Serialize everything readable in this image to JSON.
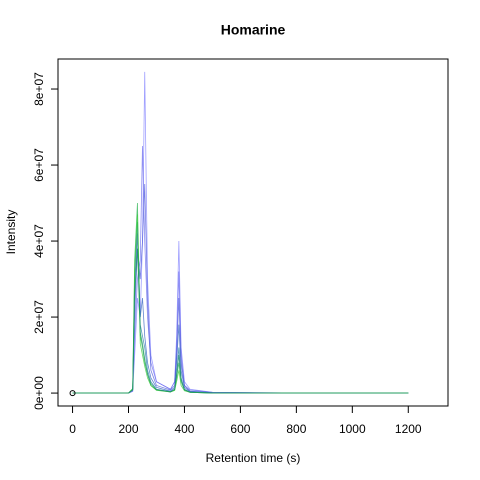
{
  "chart_data": {
    "type": "line",
    "title": "Homarine",
    "xlabel": "Retention time (s)",
    "ylabel": "Intensity",
    "x": [
      0,
      200,
      215,
      222,
      232,
      242,
      250,
      258,
      268,
      280,
      300,
      350,
      365,
      372,
      380,
      388,
      400,
      420,
      500,
      800,
      1200
    ],
    "series": [
      {
        "color": "#8080ff",
        "values": [
          0,
          0,
          500000,
          10000000,
          25000000,
          20000000,
          40000000,
          84500000,
          30000000,
          10000000,
          3000000,
          1000000,
          3000000,
          15000000,
          40000000,
          12000000,
          3000000,
          1000000,
          200000,
          0,
          0
        ]
      },
      {
        "color": "#6a6aee",
        "values": [
          0,
          0,
          500000,
          15000000,
          30000000,
          35000000,
          65000000,
          40000000,
          20000000,
          8000000,
          3000000,
          1000000,
          3000000,
          12000000,
          32000000,
          10000000,
          2000000,
          800000,
          200000,
          0,
          0
        ]
      },
      {
        "color": "#4c5ad8",
        "values": [
          0,
          0,
          800000,
          20000000,
          38000000,
          30000000,
          40000000,
          55000000,
          25000000,
          6000000,
          2000000,
          800000,
          2000000,
          10000000,
          25000000,
          8000000,
          2000000,
          500000,
          100000,
          0,
          0
        ]
      },
      {
        "color": "#2f5fc0",
        "values": [
          0,
          0,
          1000000,
          25000000,
          42000000,
          20000000,
          25000000,
          15000000,
          8000000,
          4000000,
          1500000,
          500000,
          1500000,
          8000000,
          18000000,
          6000000,
          1500000,
          400000,
          100000,
          0,
          0
        ]
      },
      {
        "color": "#1f7fa0",
        "values": [
          0,
          0,
          1000000,
          30000000,
          45000000,
          18000000,
          15000000,
          12000000,
          6000000,
          3000000,
          1000000,
          400000,
          1000000,
          5000000,
          12000000,
          4000000,
          1000000,
          300000,
          0,
          0,
          0
        ]
      },
      {
        "color": "#22b04a",
        "values": [
          0,
          0,
          1200000,
          35000000,
          50000000,
          15000000,
          12000000,
          8000000,
          5000000,
          2000000,
          800000,
          300000,
          800000,
          4000000,
          8000000,
          3000000,
          800000,
          200000,
          0,
          0,
          0
        ]
      },
      {
        "color": "#33cc33",
        "values": [
          0,
          0,
          1000000,
          32000000,
          47000000,
          13000000,
          10000000,
          7000000,
          4000000,
          2000000,
          700000,
          300000,
          700000,
          3000000,
          6000000,
          2000000,
          600000,
          200000,
          0,
          0,
          0
        ]
      },
      {
        "color": "#1a8a6a",
        "values": [
          0,
          0,
          800000,
          26000000,
          38000000,
          16000000,
          13000000,
          9000000,
          5000000,
          2500000,
          900000,
          300000,
          1000000,
          5000000,
          10000000,
          3500000,
          900000,
          200000,
          0,
          0,
          0
        ]
      }
    ],
    "points": {
      "x": [
        0
      ],
      "values": [
        0
      ]
    },
    "xlim": [
      -52,
      1342
    ],
    "xticks": [
      0,
      200,
      400,
      600,
      800,
      1000,
      1200
    ],
    "ylim": [
      -3400000,
      87900000
    ],
    "yticks": [
      {
        "value": 0,
        "label": "0e+00"
      },
      {
        "value": 20000000,
        "label": "2e+07"
      },
      {
        "value": 40000000,
        "label": "4e+07"
      },
      {
        "value": 60000000,
        "label": "6e+07"
      },
      {
        "value": 80000000,
        "label": "8e+07"
      }
    ]
  }
}
